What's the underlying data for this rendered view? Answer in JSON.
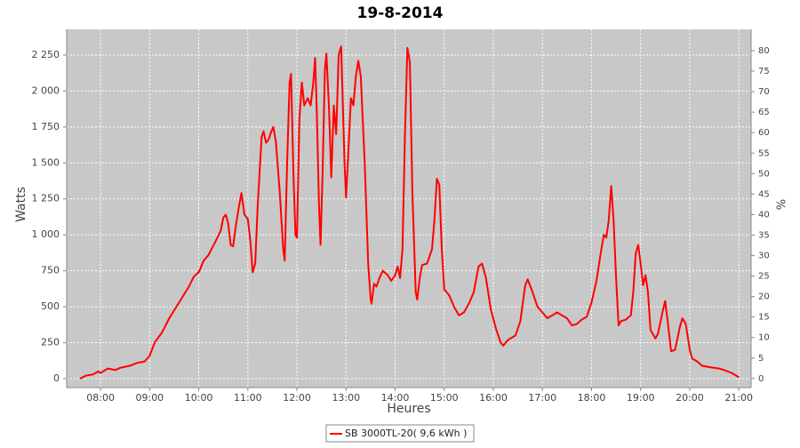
{
  "chart_data": {
    "type": "line",
    "title": "19-8-2014",
    "x_label": "Heures",
    "y_label": "Watts",
    "y2_label": "%",
    "x": [
      7.58,
      7.7,
      7.85,
      7.95,
      8.0,
      8.15,
      8.3,
      8.4,
      8.6,
      8.75,
      8.9,
      9.0,
      9.1,
      9.25,
      9.4,
      9.6,
      9.8,
      9.9,
      10.0,
      10.1,
      10.2,
      10.35,
      10.45,
      10.5,
      10.55,
      10.6,
      10.65,
      10.7,
      10.75,
      10.82,
      10.87,
      10.93,
      11.0,
      11.05,
      11.1,
      11.15,
      11.2,
      11.28,
      11.32,
      11.37,
      11.42,
      11.48,
      11.52,
      11.57,
      11.65,
      11.72,
      11.75,
      11.8,
      11.85,
      11.88,
      11.93,
      11.97,
      12.0,
      12.05,
      12.1,
      12.15,
      12.22,
      12.28,
      12.33,
      12.37,
      12.4,
      12.45,
      12.48,
      12.52,
      12.57,
      12.6,
      12.65,
      12.7,
      12.75,
      12.8,
      12.85,
      12.9,
      12.97,
      13.0,
      13.05,
      13.1,
      13.15,
      13.2,
      13.25,
      13.3,
      13.38,
      13.45,
      13.5,
      13.52,
      13.57,
      13.62,
      13.68,
      13.75,
      13.85,
      13.92,
      14.0,
      14.05,
      14.1,
      14.15,
      14.2,
      14.25,
      14.3,
      14.35,
      14.42,
      14.45,
      14.5,
      14.55,
      14.65,
      14.75,
      14.8,
      14.85,
      14.9,
      14.95,
      15.0,
      15.1,
      15.2,
      15.3,
      15.4,
      15.5,
      15.6,
      15.7,
      15.77,
      15.85,
      15.95,
      16.05,
      16.15,
      16.2,
      16.3,
      16.45,
      16.55,
      16.65,
      16.7,
      16.8,
      16.9,
      17.0,
      17.1,
      17.2,
      17.3,
      17.4,
      17.5,
      17.6,
      17.7,
      17.8,
      17.9,
      18.0,
      18.1,
      18.2,
      18.25,
      18.3,
      18.35,
      18.4,
      18.45,
      18.5,
      18.55,
      18.6,
      18.7,
      18.8,
      18.85,
      18.9,
      18.95,
      19.0,
      19.05,
      19.1,
      19.15,
      19.2,
      19.3,
      19.35,
      19.45,
      19.5,
      19.55,
      19.62,
      19.7,
      19.8,
      19.85,
      19.92,
      20.0,
      20.05,
      20.15,
      20.25,
      20.4,
      20.6,
      20.7,
      20.85,
      21.0
    ],
    "series": [
      {
        "name": "SB 3000TL-20( 9,6 kWh )",
        "color": "#ff0000",
        "values": [
          0,
          20,
          30,
          50,
          40,
          70,
          60,
          75,
          90,
          110,
          120,
          160,
          250,
          320,
          420,
          530,
          640,
          710,
          740,
          820,
          860,
          960,
          1030,
          1120,
          1140,
          1080,
          930,
          920,
          1050,
          1200,
          1290,
          1140,
          1110,
          960,
          740,
          800,
          1200,
          1680,
          1720,
          1640,
          1660,
          1720,
          1750,
          1650,
          1300,
          900,
          820,
          1500,
          2060,
          2120,
          1400,
          1000,
          980,
          1800,
          2060,
          1900,
          1950,
          1900,
          2050,
          2230,
          1900,
          1200,
          930,
          1400,
          2150,
          2260,
          1900,
          1400,
          1900,
          1700,
          2250,
          2310,
          1500,
          1260,
          1600,
          1950,
          1900,
          2100,
          2210,
          2100,
          1500,
          800,
          560,
          520,
          660,
          640,
          700,
          750,
          720,
          680,
          720,
          780,
          700,
          900,
          1700,
          2300,
          2200,
          1300,
          600,
          550,
          700,
          790,
          800,
          900,
          1100,
          1390,
          1350,
          900,
          620,
          580,
          500,
          440,
          460,
          520,
          600,
          780,
          800,
          700,
          480,
          350,
          250,
          230,
          270,
          300,
          400,
          650,
          690,
          600,
          500,
          460,
          420,
          440,
          460,
          440,
          420,
          370,
          380,
          410,
          430,
          530,
          680,
          900,
          1000,
          980,
          1100,
          1340,
          1100,
          700,
          370,
          400,
          410,
          440,
          600,
          870,
          930,
          800,
          650,
          720,
          600,
          340,
          280,
          310,
          470,
          540,
          400,
          190,
          200,
          360,
          420,
          380,
          200,
          140,
          120,
          90,
          80,
          70,
          60,
          40,
          10
        ]
      }
    ],
    "xlim": [
      7.31,
      21.25
    ],
    "xticks": [
      {
        "value": 8,
        "label": "08:00"
      },
      {
        "value": 9,
        "label": "09:00"
      },
      {
        "value": 10,
        "label": "10:00"
      },
      {
        "value": 11,
        "label": "11:00"
      },
      {
        "value": 12,
        "label": "12:00"
      },
      {
        "value": 13,
        "label": "13:00"
      },
      {
        "value": 14,
        "label": "14:00"
      },
      {
        "value": 15,
        "label": "15:00"
      },
      {
        "value": 16,
        "label": "16:00"
      },
      {
        "value": 17,
        "label": "17:00"
      },
      {
        "value": 18,
        "label": "18:00"
      },
      {
        "value": 19,
        "label": "19:00"
      },
      {
        "value": 20,
        "label": "20:00"
      },
      {
        "value": 21,
        "label": "21:00"
      }
    ],
    "ylim": [
      -62,
      2429
    ],
    "yticks": [
      0,
      250,
      500,
      750,
      {
        "value": 1000,
        "label": "1 000"
      },
      {
        "value": 1250,
        "label": "1 250"
      },
      {
        "value": 1500,
        "label": "1 500"
      },
      {
        "value": 1750,
        "label": "1 750"
      },
      {
        "value": 2000,
        "label": "2 000"
      },
      {
        "value": 2250,
        "label": "2 250"
      }
    ],
    "y2lim": [
      -2.2,
      85.2
    ],
    "y2ticks": [
      0,
      5,
      10,
      15,
      20,
      25,
      30,
      35,
      40,
      45,
      50,
      55,
      60,
      65,
      70,
      75,
      80
    ],
    "grid": true
  }
}
